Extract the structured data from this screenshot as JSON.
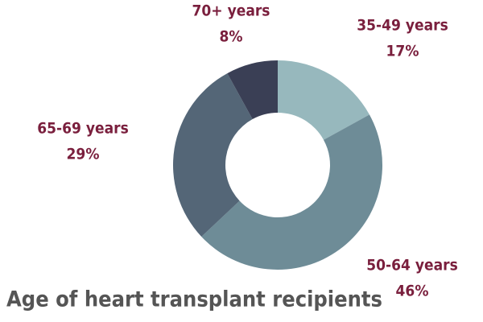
{
  "chart_data": {
    "type": "pie",
    "title": "Age of heart transplant recipients",
    "categories": [
      "35-49 years",
      "50-64 years",
      "65-69 years",
      "70+ years"
    ],
    "values": [
      17,
      46,
      29,
      8
    ],
    "value_labels": [
      "17%",
      "46%",
      "29%",
      "8%"
    ],
    "colors": [
      "#97b8bd",
      "#6e8c97",
      "#546677",
      "#3a3f55"
    ],
    "label_color": "#7a1f3d"
  }
}
